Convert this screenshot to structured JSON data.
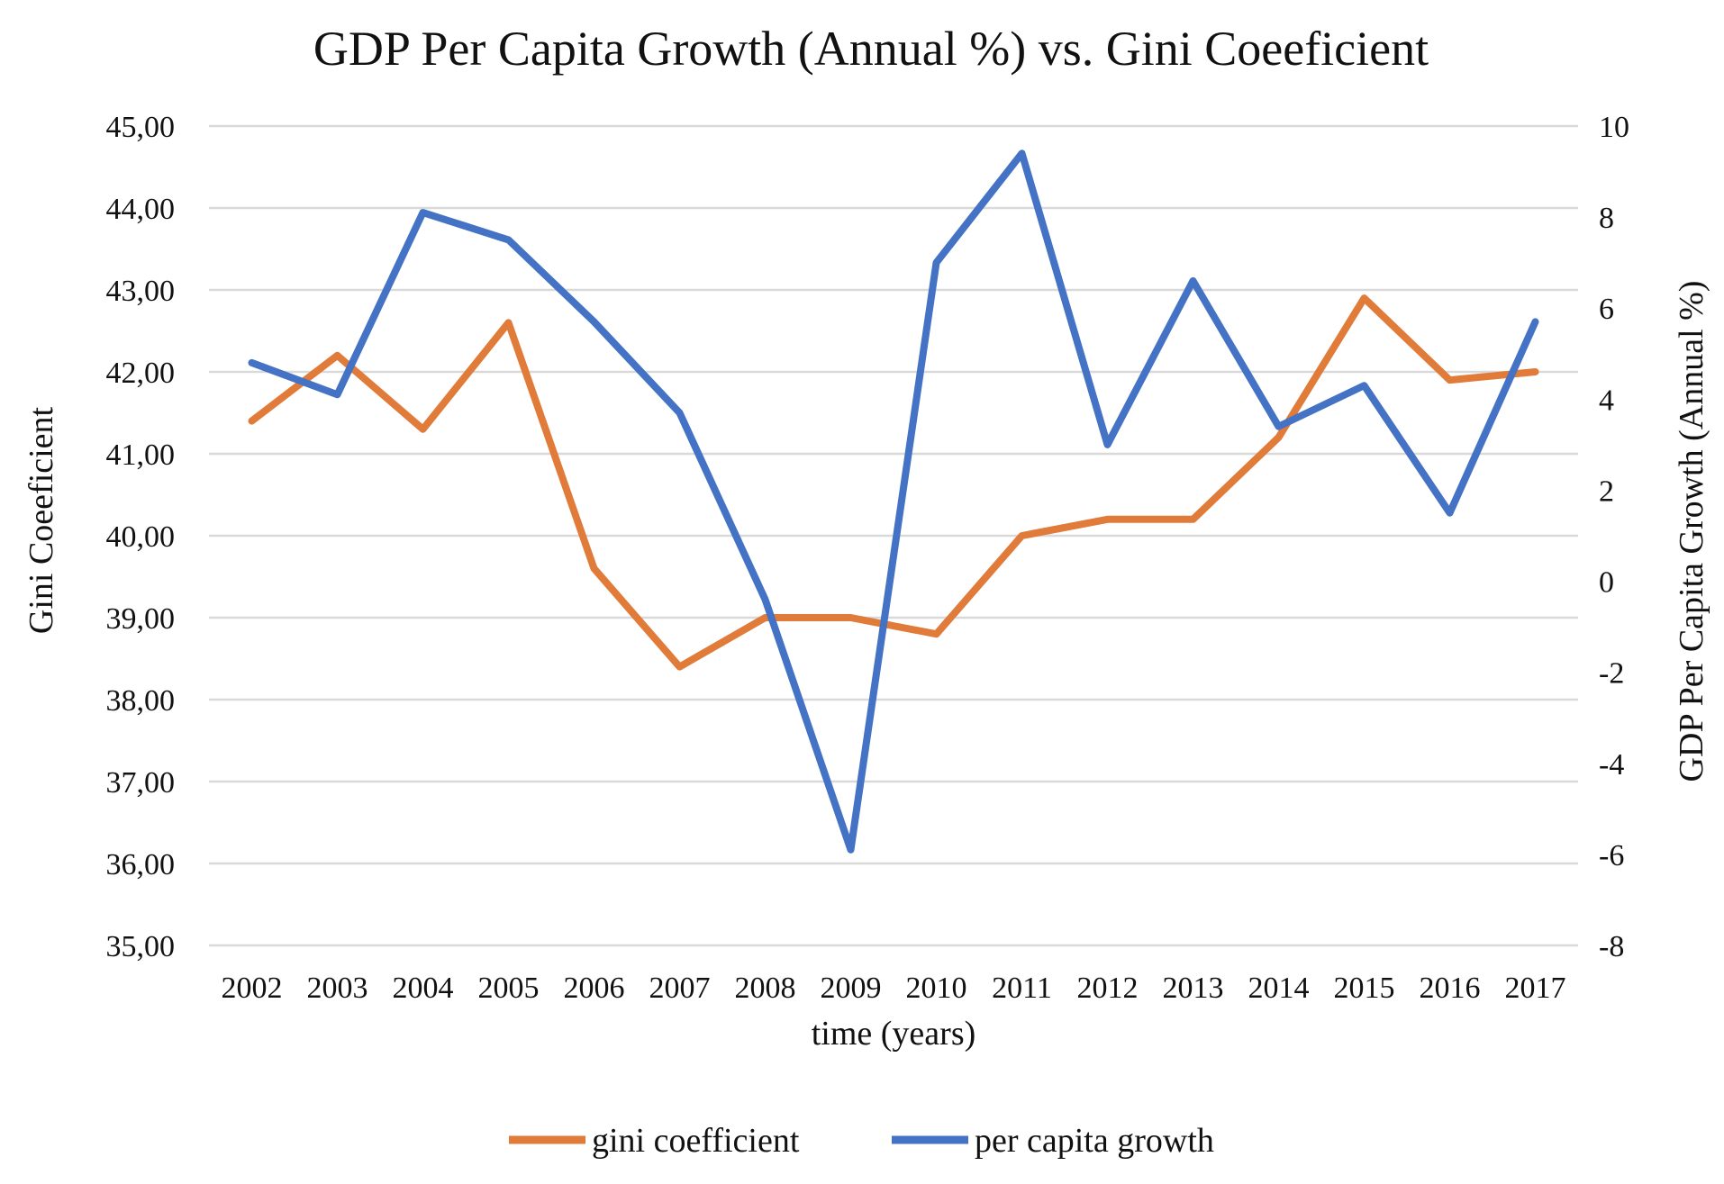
{
  "chart_data": {
    "type": "line",
    "title": "GDP Per Capita Growth (Annual %) vs. Gini Coeeficient",
    "xlabel": "time (years)",
    "ylabel_left": "Gini Coeeficient",
    "ylabel_right": "GDP Per Capita Growth (Annual %)",
    "categories": [
      "2002",
      "2003",
      "2004",
      "2005",
      "2006",
      "2007",
      "2008",
      "2009",
      "2010",
      "2011",
      "2012",
      "2013",
      "2014",
      "2015",
      "2016",
      "2017"
    ],
    "y_left": {
      "lim": [
        35,
        45
      ],
      "ticks": [
        35,
        36,
        37,
        38,
        39,
        40,
        41,
        42,
        43,
        44,
        45
      ],
      "tick_labels": [
        "35,00",
        "36,00",
        "37,00",
        "38,00",
        "39,00",
        "40,00",
        "41,00",
        "42,00",
        "43,00",
        "44,00",
        "45,00"
      ]
    },
    "y_right": {
      "lim": [
        -8,
        10
      ],
      "ticks": [
        -8,
        -6,
        -4,
        -2,
        0,
        2,
        4,
        6,
        8,
        10
      ],
      "tick_labels": [
        "-8",
        "-6",
        "-4",
        "-2",
        "0",
        "2",
        "4",
        "6",
        "8",
        "10"
      ]
    },
    "grid": true,
    "legend_position": "bottom",
    "series": [
      {
        "name": "gini coefficient",
        "axis": "left",
        "color": "#E07B39",
        "values": [
          41.4,
          42.2,
          41.3,
          42.6,
          39.6,
          38.4,
          39.0,
          39.0,
          38.8,
          40.0,
          40.2,
          40.2,
          41.2,
          42.9,
          41.9,
          42.0
        ]
      },
      {
        "name": "per capita growth",
        "axis": "right",
        "color": "#4472C4",
        "values": [
          4.8,
          4.1,
          8.1,
          7.5,
          5.7,
          3.7,
          -0.4,
          -5.9,
          7.0,
          9.4,
          3.0,
          6.6,
          3.4,
          4.3,
          1.5,
          5.7
        ]
      }
    ]
  }
}
